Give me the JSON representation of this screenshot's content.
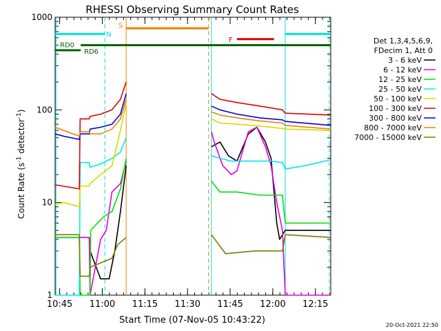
{
  "chart_data": {
    "type": "line",
    "title": "RHESSI Observing Summary Count Rates",
    "xlabel": "Start Time (07-Nov-05 10:43:22)",
    "ylabel_main": "Count Rate (s",
    "ylabel_sup1": "-1",
    "ylabel_mid": " detector",
    "ylabel_sup2": "-1",
    "ylabel_end": ")",
    "y_scale": "log",
    "ylim": [
      1,
      1000
    ],
    "xlim_minutes": [
      0,
      97
    ],
    "x_ticks": [
      {
        "t": 1.6,
        "label": "10:45"
      },
      {
        "t": 16.6,
        "label": "11:00"
      },
      {
        "t": 31.6,
        "label": "11:15"
      },
      {
        "t": 46.6,
        "label": "11:30"
      },
      {
        "t": 61.6,
        "label": "11:45"
      },
      {
        "t": 76.6,
        "label": "12:00"
      },
      {
        "t": 91.6,
        "label": "12:15"
      }
    ],
    "y_ticks": [
      {
        "v": 1,
        "label": "1"
      },
      {
        "v": 10,
        "label": "10"
      },
      {
        "v": 100,
        "label": "100"
      },
      {
        "v": 1000,
        "label": "1000"
      }
    ],
    "timestamp": "20-Oct-2021 22:50",
    "legend": {
      "header1": "Det 1,3,4,5,6,9,",
      "header2": "FDecim 1, Att 0",
      "placement": "right"
    },
    "series": [
      {
        "name": "3 - 6 keV",
        "color": "#000000"
      },
      {
        "name": "6 - 12 keV",
        "color": "#e000e0"
      },
      {
        "name": "12 - 25 keV",
        "color": "#00e000"
      },
      {
        "name": "25 - 50 keV",
        "color": "#00e8e8"
      },
      {
        "name": "50 - 100 keV",
        "color": "#d8d800"
      },
      {
        "name": "100 - 300 keV",
        "color": "#e00000"
      },
      {
        "name": "300 - 800 keV",
        "color": "#0000e0"
      },
      {
        "name": "800 - 7000 keV",
        "color": "#f08000"
      },
      {
        "name": "7000 - 15000 keV",
        "color": "#7a7a00"
      }
    ],
    "flags": [
      {
        "label": "RD0",
        "color": "#006400",
        "y_value": 500,
        "start": 9,
        "end": 97
      },
      {
        "label": "RD6",
        "color": "#006400",
        "y_value": 440,
        "start": 0,
        "end": 9
      },
      {
        "label": "N",
        "color": "#00e0e0",
        "y_value": 660,
        "start": 0,
        "end": 17.5
      },
      {
        "label": "S",
        "color": "#f08000",
        "y_value": 760,
        "start": 25,
        "end": 54
      },
      {
        "label": "F",
        "color": "#e00000",
        "y_value": 580,
        "start": 64,
        "end": 77
      },
      {
        "label": "",
        "color": "#00e0e0",
        "y_value": 660,
        "start": 81,
        "end": 97
      }
    ],
    "vlines": [
      {
        "t": 0.3,
        "color": "#00e0e0",
        "dash": false
      },
      {
        "t": 17.5,
        "color": "#00e0e0",
        "dash": true
      },
      {
        "t": 25.0,
        "color": "#f08000",
        "dash": false
      },
      {
        "t": 54.0,
        "color": "#f08000",
        "dash": true
      },
      {
        "t": 55.0,
        "color": "#00e0e0",
        "dash": false
      },
      {
        "t": 81.0,
        "color": "#00e0e0",
        "dash": false
      },
      {
        "t": 96.5,
        "color": "#00e0e0",
        "dash": true
      }
    ],
    "segments": [
      {
        "start": 0,
        "end": 25
      },
      {
        "start": 55,
        "end": 97
      }
    ],
    "series_points": [
      [
        [
          0,
          4.2
        ],
        [
          12,
          4.2
        ],
        [
          12.3,
          3
        ],
        [
          16,
          1.5
        ],
        [
          19,
          1.5
        ],
        [
          21,
          3
        ],
        [
          23,
          8
        ],
        [
          25,
          25
        ],
        [
          55,
          40
        ],
        [
          58,
          45
        ],
        [
          61,
          32
        ],
        [
          64,
          28
        ],
        [
          68,
          55
        ],
        [
          71,
          65
        ],
        [
          74,
          45
        ],
        [
          76,
          30
        ],
        [
          78,
          6
        ],
        [
          79,
          4
        ],
        [
          81,
          5
        ],
        [
          97,
          5
        ]
      ],
      [
        [
          0,
          4.2
        ],
        [
          12,
          4.2
        ],
        [
          12.3,
          1
        ],
        [
          16,
          4
        ],
        [
          18,
          5
        ],
        [
          20,
          13
        ],
        [
          23,
          16
        ],
        [
          25,
          28
        ],
        [
          55,
          58
        ],
        [
          56,
          45
        ],
        [
          59,
          25
        ],
        [
          62,
          20
        ],
        [
          64,
          22
        ],
        [
          68,
          58
        ],
        [
          71,
          65
        ],
        [
          74,
          40
        ],
        [
          76,
          25
        ],
        [
          78,
          10
        ],
        [
          80,
          5
        ],
        [
          81,
          1
        ],
        [
          97,
          1
        ]
      ],
      [
        [
          0,
          4.2
        ],
        [
          8.5,
          4.2
        ],
        [
          8.8,
          1
        ],
        [
          12.3,
          1
        ],
        [
          12.5,
          5
        ],
        [
          17,
          7
        ],
        [
          20,
          8
        ],
        [
          23,
          14
        ],
        [
          25,
          30
        ],
        [
          55,
          17
        ],
        [
          58,
          13
        ],
        [
          64,
          13
        ],
        [
          72,
          12
        ],
        [
          76,
          12
        ],
        [
          80,
          12
        ],
        [
          81,
          6
        ],
        [
          97,
          6
        ]
      ],
      [
        [
          0,
          1
        ],
        [
          8.5,
          1
        ],
        [
          8.8,
          27
        ],
        [
          12,
          27
        ],
        [
          12.3,
          24
        ],
        [
          16,
          26
        ],
        [
          20,
          30
        ],
        [
          23,
          35
        ],
        [
          25,
          50
        ],
        [
          55,
          32
        ],
        [
          58,
          30
        ],
        [
          62,
          28
        ],
        [
          68,
          28
        ],
        [
          76,
          28
        ],
        [
          80,
          27
        ],
        [
          81,
          23
        ],
        [
          88,
          25
        ],
        [
          97,
          29
        ]
      ],
      [
        [
          0,
          9.5
        ],
        [
          3,
          10
        ],
        [
          8.5,
          9
        ],
        [
          8.8,
          15
        ],
        [
          12,
          15
        ],
        [
          12.3,
          16
        ],
        [
          16,
          20
        ],
        [
          20,
          25
        ],
        [
          23,
          60
        ],
        [
          25,
          120
        ],
        [
          55,
          80
        ],
        [
          58,
          72
        ],
        [
          64,
          70
        ],
        [
          72,
          67
        ],
        [
          80,
          63
        ],
        [
          81,
          62
        ],
        [
          97,
          60
        ]
      ],
      [
        [
          0,
          15.5
        ],
        [
          3,
          15
        ],
        [
          8.5,
          14
        ],
        [
          8.8,
          80
        ],
        [
          12,
          80
        ],
        [
          12.3,
          85
        ],
        [
          16,
          90
        ],
        [
          20,
          100
        ],
        [
          23,
          130
        ],
        [
          25,
          200
        ],
        [
          55,
          150
        ],
        [
          58,
          130
        ],
        [
          64,
          120
        ],
        [
          72,
          110
        ],
        [
          80,
          100
        ],
        [
          81,
          92
        ],
        [
          97,
          88
        ]
      ],
      [
        [
          0,
          55
        ],
        [
          3,
          52
        ],
        [
          8.5,
          48
        ],
        [
          8.8,
          55
        ],
        [
          12,
          55
        ],
        [
          12.3,
          62
        ],
        [
          16,
          65
        ],
        [
          20,
          70
        ],
        [
          23,
          90
        ],
        [
          25,
          150
        ],
        [
          55,
          110
        ],
        [
          58,
          100
        ],
        [
          64,
          90
        ],
        [
          72,
          82
        ],
        [
          80,
          78
        ],
        [
          81,
          75
        ],
        [
          97,
          68
        ]
      ],
      [
        [
          0,
          65
        ],
        [
          3,
          60
        ],
        [
          8.5,
          52
        ],
        [
          8.8,
          58
        ],
        [
          12,
          58
        ],
        [
          12.3,
          55
        ],
        [
          16,
          55
        ],
        [
          20,
          62
        ],
        [
          23,
          80
        ],
        [
          25,
          130
        ],
        [
          55,
          95
        ],
        [
          58,
          88
        ],
        [
          64,
          82
        ],
        [
          72,
          76
        ],
        [
          80,
          72
        ],
        [
          81,
          68
        ],
        [
          97,
          62
        ]
      ],
      [
        [
          0,
          4.5
        ],
        [
          8.5,
          4.5
        ],
        [
          8.8,
          1.6
        ],
        [
          12,
          1.6
        ],
        [
          12.3,
          2.0
        ],
        [
          20,
          2.5
        ],
        [
          22,
          3.5
        ],
        [
          25,
          4.2
        ],
        [
          55,
          4.5
        ],
        [
          60,
          2.8
        ],
        [
          70,
          3.0
        ],
        [
          80,
          3.0
        ],
        [
          81,
          4.5
        ],
        [
          97,
          4.2
        ]
      ]
    ]
  }
}
